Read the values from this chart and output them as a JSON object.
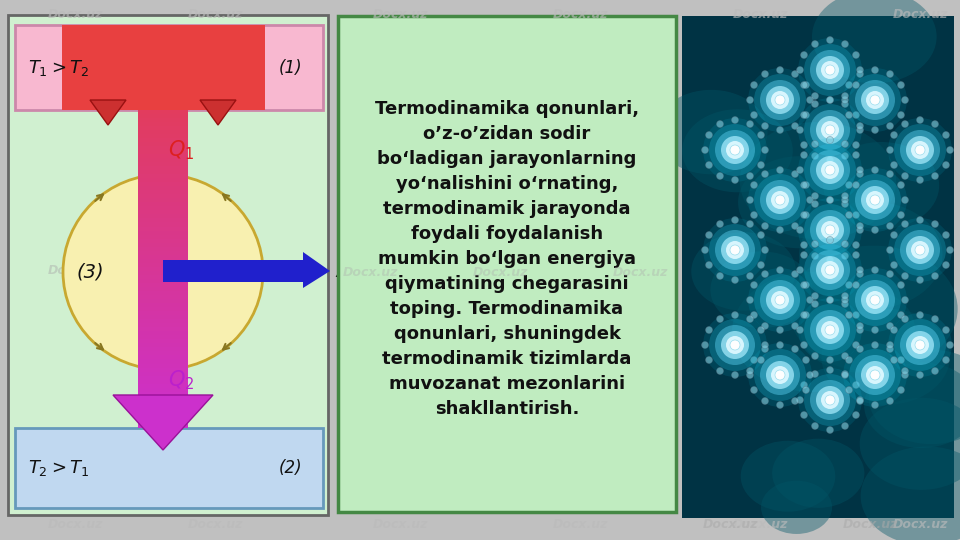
{
  "bg_color": "#c0c0c0",
  "left_panel_bg": "#d0f0d0",
  "left_panel_border": "#666666",
  "top_rect_color": "#f8b8d0",
  "top_rect_border": "#cc88aa",
  "bottom_rect_color": "#c0d8f0",
  "bottom_rect_border": "#6699bb",
  "circle_color": "#f8f0b0",
  "circle_edge": "#c8a830",
  "arrow_right_color": "#2020cc",
  "text_box_bg": "#c0ecc0",
  "text_box_border": "#448844",
  "main_text": "Termodinamika qonunlari,\no’z-o’zidan sodir\nbo‘ladigan jarayonlarning\nyo‘nalishini o‘rnating,\ntermodinamik jarayonda\nfoydali foydalanish\nmumkin bo‘lgan energiya\nqiymatining chegarasini\ntoping. Termodinamika\nqonunlari, shuningdek\ntermodinamik tizimlarda\nmuvozanat mezonlarini\nshakllantirish.",
  "right_bg": "#003344",
  "watermark": "Docx.uz"
}
